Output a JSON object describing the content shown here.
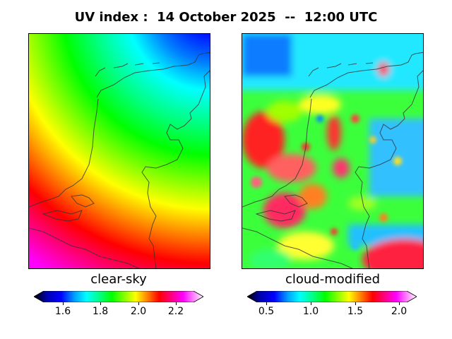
{
  "title": "UV index :  14 October 2025  --  12:00 UTC",
  "panels": [
    {
      "label": "clear-sky",
      "ticks": [
        "1.6",
        "1.8",
        "2.0",
        "2.2"
      ]
    },
    {
      "label": "cloud-modified",
      "ticks": [
        "0.5",
        "1.0",
        "1.5",
        "2.0"
      ]
    }
  ],
  "colormap": [
    "#000000",
    "#0000b4",
    "#0000ff",
    "#00a0ff",
    "#00ffff",
    "#00ff80",
    "#00ff00",
    "#80ff00",
    "#ffff00",
    "#ff8000",
    "#ff0000",
    "#ff0080",
    "#ff00ff",
    "#ffffff"
  ]
}
